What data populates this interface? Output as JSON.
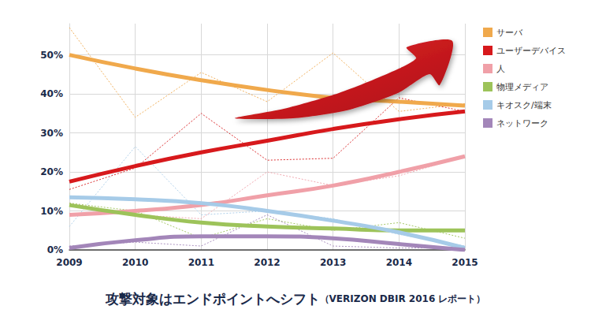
{
  "chart_data": {
    "type": "line",
    "title": "攻撃対象はエンドポイントへシフト",
    "subtitle": "（VERIZON DBIR 2016 レポート）",
    "categories": [
      "2009",
      "2010",
      "2011",
      "2012",
      "2013",
      "2014",
      "2015"
    ],
    "ylim": [
      0,
      58
    ],
    "yticks": [
      {
        "value": 0,
        "label": "0%"
      },
      {
        "value": 10,
        "label": "10%"
      },
      {
        "value": 20,
        "label": "20%"
      },
      {
        "value": 30,
        "label": "30%"
      },
      {
        "value": 40,
        "label": "40%"
      },
      {
        "value": 50,
        "label": "50%"
      }
    ],
    "grid": true,
    "legend": "top-right",
    "series": [
      {
        "name": "サーバ",
        "color": "#f0a94c",
        "line_style": "solid",
        "marker": "none",
        "values": [
          50,
          46.5,
          43.5,
          41,
          39,
          38,
          37
        ]
      },
      {
        "name": "ユーザーデバイス",
        "color": "#d7191c",
        "line_style": "solid",
        "marker": "none",
        "values": [
          17.5,
          21.5,
          25,
          28,
          31,
          33.5,
          35.5
        ]
      },
      {
        "name": "人",
        "color": "#f0a0a8",
        "line_style": "solid",
        "marker": "none",
        "values": [
          9,
          10,
          11.5,
          14,
          16.5,
          20,
          24
        ]
      },
      {
        "name": "物理メディア",
        "color": "#9dc35a",
        "line_style": "solid",
        "marker": "none",
        "values": [
          11.5,
          9,
          7,
          6,
          5.5,
          5,
          5
        ]
      },
      {
        "name": "キオスク/端末",
        "color": "#a6cbe8",
        "line_style": "solid",
        "marker": "none",
        "values": [
          13.5,
          13,
          12,
          10,
          7.5,
          4.5,
          0.5
        ]
      },
      {
        "name": "ネットワーク",
        "color": "#a386b9",
        "line_style": "solid",
        "marker": "none",
        "values": [
          0.5,
          2.5,
          3.5,
          3.5,
          3,
          1.5,
          0
        ]
      },
      {
        "name": "サーバ",
        "color": "#f0a94c",
        "line_style": "dotted",
        "marker": "none",
        "values": [
          57,
          34,
          45.5,
          38,
          50.5,
          35.5,
          37.5
        ]
      },
      {
        "name": "ユーザーデバイス",
        "color": "#d7191c",
        "line_style": "dotted",
        "marker": "none",
        "values": [
          15.5,
          21,
          35,
          23,
          23.5,
          39,
          35.5
        ]
      },
      {
        "name": "人",
        "color": "#f0a0a8",
        "line_style": "dotted",
        "marker": "none",
        "values": [
          12,
          9,
          8,
          20,
          16.5,
          19,
          24
        ]
      },
      {
        "name": "物理メディア",
        "color": "#9dc35a",
        "line_style": "dotted",
        "marker": "none",
        "values": [
          12,
          10,
          3,
          8,
          5,
          7,
          3
        ]
      },
      {
        "name": "キオスク/端末",
        "color": "#a6cbe8",
        "line_style": "dotted",
        "marker": "none",
        "values": [
          6,
          26.5,
          9,
          10,
          8,
          4,
          1
        ]
      },
      {
        "name": "ネットワーク",
        "color": "#a386b9",
        "line_style": "dotted",
        "marker": "none",
        "values": [
          1,
          2,
          1,
          9,
          1,
          0.5,
          0.5
        ]
      }
    ]
  }
}
